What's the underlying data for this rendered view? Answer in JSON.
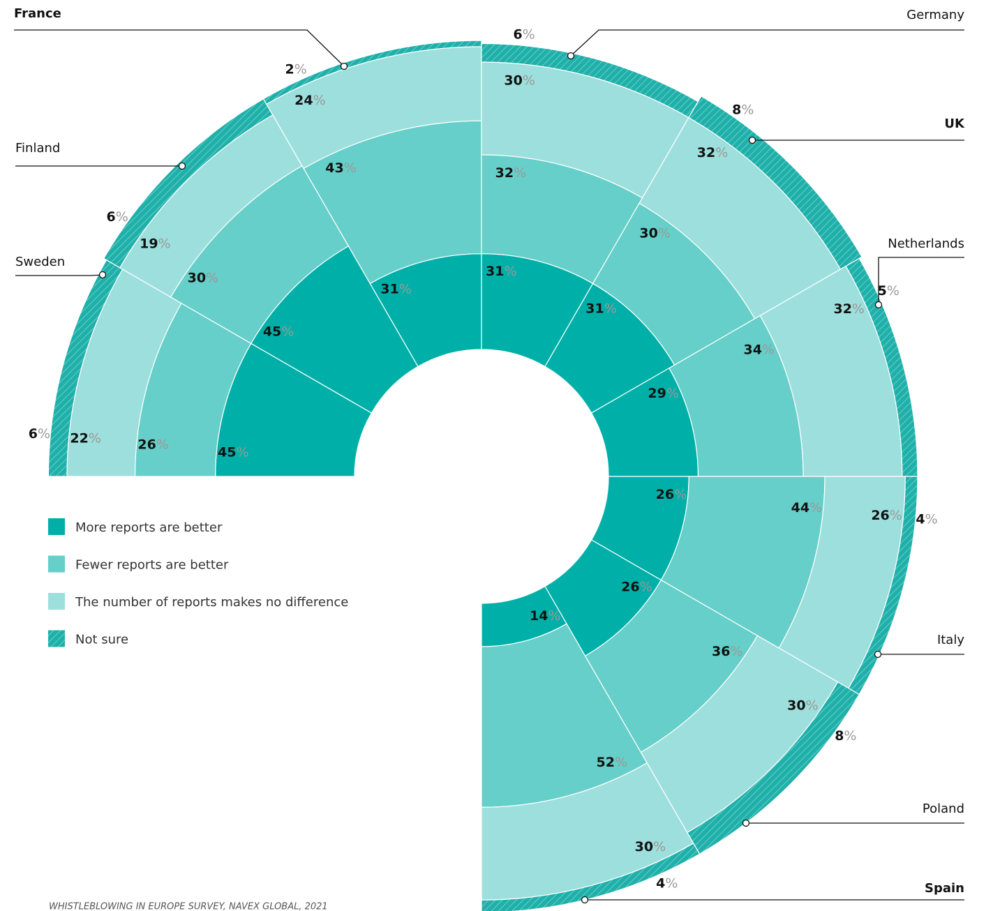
{
  "chart_data": {
    "type": "radial_stacked_bar",
    "categories": [
      "Sweden",
      "Finland",
      "France",
      "Germany",
      "UK",
      "Netherlands",
      "Italy",
      "Poland",
      "Spain"
    ],
    "series": [
      {
        "name": "More reports are better",
        "color": "#00b0a8",
        "values": [
          45,
          45,
          31,
          31,
          31,
          29,
          26,
          26,
          14
        ],
        "value_labels": [
          "45%",
          "45%",
          "31%",
          "31%",
          "31%",
          "29%",
          "26%",
          "26%",
          "14%"
        ]
      },
      {
        "name": "Fewer reports are better",
        "color": "#66cfc9",
        "values": [
          26,
          30,
          43,
          32,
          30,
          34,
          44,
          36,
          52
        ],
        "value_labels": [
          "26%",
          "30%",
          "43%",
          "32%",
          "30%",
          "34%",
          "44%",
          "36%",
          "52%"
        ]
      },
      {
        "name": "The number of reports makes no difference",
        "color": "#9ddfdc",
        "values": [
          22,
          19,
          24,
          30,
          32,
          32,
          26,
          30,
          30
        ],
        "value_labels": [
          "22%",
          "19%",
          "24%",
          "30%",
          "32%",
          "32%",
          "26%",
          "30%",
          "30%"
        ]
      },
      {
        "name": "Not sure",
        "color": "#1fb0aa",
        "pattern": "hatch",
        "values": [
          6,
          6,
          2,
          6,
          8,
          5,
          4,
          8,
          4
        ],
        "value_labels": [
          "6%",
          "6%",
          "2%",
          "6%",
          "8%",
          "5%",
          "4%",
          "8%",
          "4%"
        ]
      }
    ],
    "legend": "bottom-left",
    "source": "WHISTLEBLOWING IN EUROPE SURVEY, NAVEX GLOBAL, 2021"
  }
}
